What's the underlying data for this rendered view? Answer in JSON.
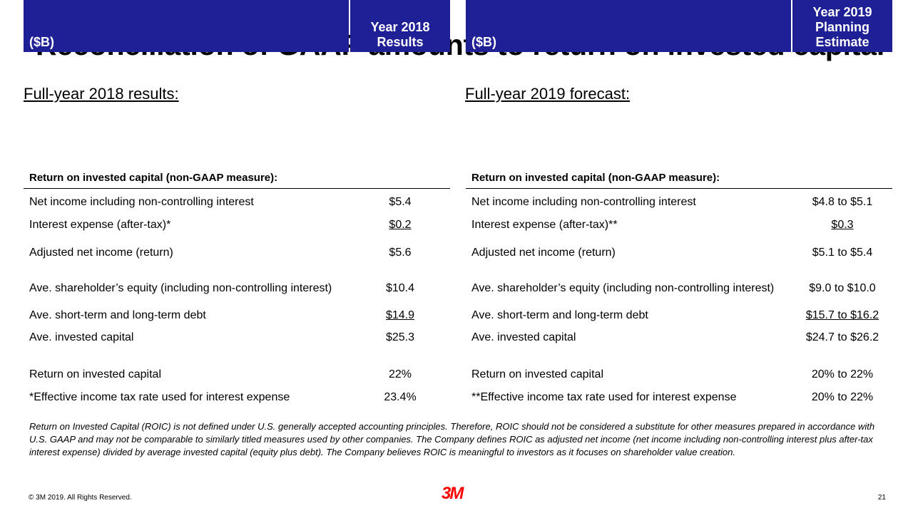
{
  "title": "Reconciliation of GAAP amounts to return on invested capital",
  "left": {
    "heading": "Full-year 2018 results:",
    "unit": "($B)",
    "column_header": [
      "Year 2018",
      "Results"
    ],
    "section": "Return on invested capital (non-GAAP measure):",
    "rows": [
      {
        "label": "Net income including non-controlling interest",
        "value": "$5.4"
      },
      {
        "label": "Interest expense (after-tax)*",
        "value": "$0.2"
      },
      {
        "label": "Adjusted net income (return)",
        "value": "$5.6"
      },
      {
        "label": "Ave. shareholder’s equity (including non-controlling interest)",
        "value": "$10.4"
      },
      {
        "label": "Ave. short-term and long-term debt",
        "value": "$14.9"
      },
      {
        "label": "Ave. invested capital",
        "value": "$25.3"
      },
      {
        "label": "Return on invested capital",
        "value": "22%"
      },
      {
        "label": "*Effective income tax rate used for interest expense",
        "value": "23.4%"
      }
    ]
  },
  "right": {
    "heading": "Full-year 2019 forecast:",
    "unit": "($B)",
    "column_header": [
      "Year 2019",
      "Planning",
      "Estimate"
    ],
    "section": "Return on invested capital (non-GAAP measure):",
    "rows": [
      {
        "label": "Net income including non-controlling interest",
        "value": "$4.8 to $5.1"
      },
      {
        "label": "Interest expense (after-tax)**",
        "value": "$0.3"
      },
      {
        "label": "Adjusted net income (return)",
        "value": "$5.1 to $5.4"
      },
      {
        "label": "Ave. shareholder’s equity (including non-controlling interest)",
        "value": "$9.0 to $10.0"
      },
      {
        "label": "Ave. short-term and long-term debt",
        "value": "$15.7 to $16.2"
      },
      {
        "label": "Ave. invested capital",
        "value": "$24.7 to $26.2"
      },
      {
        "label": "Return on invested capital",
        "value": "20% to 22%"
      },
      {
        "label": "**Effective income tax rate used for interest expense",
        "value": "20% to 22%"
      }
    ]
  },
  "note": "Return on Invested Capital (ROIC) is not defined under U.S. generally accepted accounting principles. Therefore, ROIC should not be considered a substitute for other measures prepared in accordance with U.S. GAAP and may not be comparable to similarly titled measures used by other companies. The Company defines ROIC as adjusted net income (net income including non-controlling interest plus after-tax interest expense) divided by average invested capital (equity plus debt). The Company believes ROIC is meaningful to investors as it focuses on shareholder value creation.",
  "footer": {
    "copyright": "© 3M 2019. All Rights Reserved.",
    "logo": "3M",
    "page": "21"
  },
  "colors": {
    "header_bg": "#1f1f96",
    "logo": "#ff0000"
  }
}
